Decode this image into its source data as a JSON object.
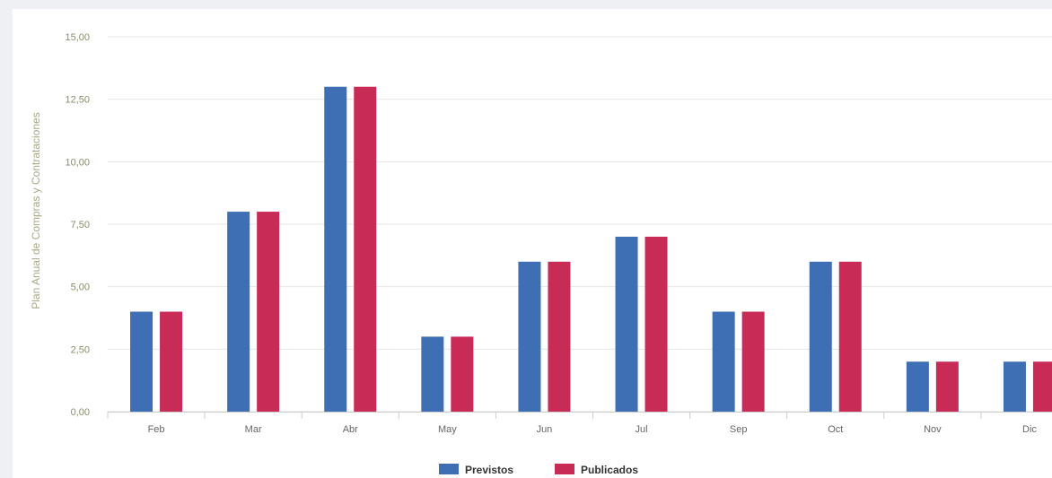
{
  "chart_data": {
    "type": "bar",
    "ylabel": "Plan Anual de Compras y Contrataciones",
    "ylim": [
      0,
      15
    ],
    "y_ticks": [
      "0,00",
      "2,50",
      "5,00",
      "7,50",
      "10,00",
      "12,50",
      "15,00"
    ],
    "categories": [
      "Feb",
      "Mar",
      "Abr",
      "May",
      "Jun",
      "Jul",
      "Sep",
      "Oct",
      "Nov",
      "Dic"
    ],
    "series": [
      {
        "name": "Previstos",
        "color": "#3e6fb4",
        "values": [
          4,
          8,
          13,
          3,
          6,
          7,
          4,
          6,
          2,
          2
        ]
      },
      {
        "name": "Publicados",
        "color": "#c92b57",
        "values": [
          4,
          8,
          13,
          3,
          6,
          7,
          4,
          6,
          2,
          2
        ]
      }
    ],
    "grid": true,
    "legend_position": "bottom-center"
  }
}
